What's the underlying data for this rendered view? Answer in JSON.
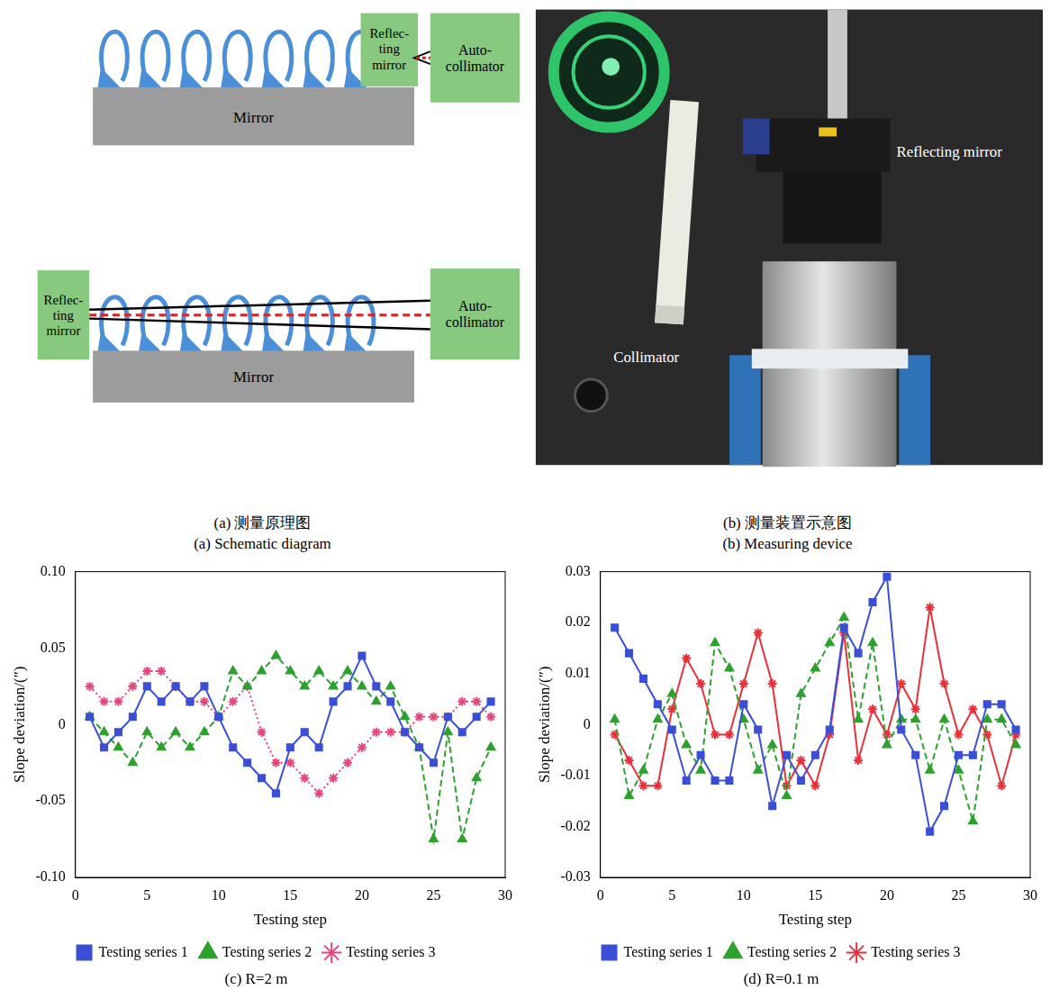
{
  "diagram": {
    "a": {
      "captions": [
        "(a) 测量原理图",
        "(a) Schematic diagram"
      ],
      "upper": {
        "reflecting_mirror": [
          "Reflec-",
          "ting",
          "mirror"
        ],
        "autocollimator": [
          "Auto-",
          "collimator"
        ],
        "mirror": "Mirror"
      },
      "lower": {
        "reflecting_mirror": [
          "Reflec-",
          "ting",
          "mirror"
        ],
        "autocollimator": [
          "Auto-",
          "collimator"
        ],
        "mirror": "Mirror"
      }
    },
    "b": {
      "captions": [
        "(b) 测量装置示意图",
        "(b) Measuring device"
      ],
      "labels": {
        "reflecting_mirror": "Reflecting mirror",
        "collimator": "Collimator"
      }
    }
  },
  "chart_data": [
    {
      "type": "line",
      "title": "(c) R=2 m",
      "x_label": "Testing step",
      "y_label": "Slope deviation/(″)",
      "x": [
        1,
        2,
        3,
        4,
        5,
        6,
        7,
        8,
        9,
        10,
        11,
        12,
        13,
        14,
        15,
        16,
        17,
        18,
        19,
        20,
        21,
        22,
        23,
        24,
        25,
        26,
        27,
        28,
        29
      ],
      "xlim": [
        0,
        30
      ],
      "xticks": [
        0,
        5,
        10,
        15,
        20,
        25,
        30
      ],
      "ylim": [
        -0.1,
        0.1
      ],
      "yticks": [
        {
          "value": -0.1,
          "label": "-0.10"
        },
        -0.05,
        0,
        0.05,
        {
          "value": 0.1,
          "label": "0.10"
        }
      ],
      "grid": false,
      "legend": "bottom",
      "series": [
        {
          "name": "Testing series 1",
          "color": "#3a4fd6",
          "marker": "square",
          "line_style": "solid",
          "values": [
            0.005,
            -0.015,
            -0.005,
            0.005,
            0.025,
            0.015,
            0.025,
            0.015,
            0.025,
            0.005,
            -0.015,
            -0.025,
            -0.035,
            -0.045,
            -0.015,
            -0.005,
            -0.015,
            0.015,
            0.025,
            0.045,
            0.025,
            0.015,
            -0.005,
            -0.015,
            -0.025,
            0.005,
            -0.005,
            0.005,
            0.015
          ]
        },
        {
          "name": "Testing series 2",
          "color": "#2ea02e",
          "marker": "triangle",
          "line_style": "dashed",
          "values": [
            0.005,
            -0.005,
            -0.015,
            -0.025,
            -0.005,
            -0.015,
            -0.005,
            -0.015,
            -0.005,
            0.005,
            0.035,
            0.025,
            0.035,
            0.045,
            0.035,
            0.025,
            0.035,
            0.025,
            0.035,
            0.025,
            0.015,
            0.025,
            0.005,
            -0.015,
            -0.075,
            -0.005,
            -0.075,
            -0.035,
            -0.015
          ]
        },
        {
          "name": "Testing series 3",
          "color": "#e8467a",
          "marker": "star",
          "line_style": "dotted",
          "values": [
            0.025,
            0.015,
            0.015,
            0.025,
            0.035,
            0.035,
            0.025,
            0.015,
            0.015,
            0.005,
            0.015,
            0.025,
            -0.005,
            -0.025,
            -0.025,
            -0.035,
            -0.045,
            -0.035,
            -0.025,
            -0.015,
            -0.005,
            -0.005,
            -0.005,
            0.005,
            0.005,
            0.005,
            0.015,
            0.015,
            0.005
          ]
        }
      ]
    },
    {
      "type": "line",
      "title": "(d) R=0.1 m",
      "x_label": "Testing step",
      "y_label": "Slope deviation/(″)",
      "x": [
        1,
        2,
        3,
        4,
        5,
        6,
        7,
        8,
        9,
        10,
        11,
        12,
        13,
        14,
        15,
        16,
        17,
        18,
        19,
        20,
        21,
        22,
        23,
        24,
        25,
        26,
        27,
        28,
        29
      ],
      "xlim": [
        0,
        30
      ],
      "xticks": [
        0,
        5,
        10,
        15,
        20,
        25,
        30
      ],
      "ylim": [
        -0.03,
        0.03
      ],
      "yticks": [
        -0.03,
        -0.02,
        -0.01,
        0,
        0.01,
        0.02,
        0.03
      ],
      "grid": false,
      "legend": "bottom",
      "series": [
        {
          "name": "Testing series 1",
          "color": "#3a4fd6",
          "marker": "square",
          "line_style": "solid",
          "values": [
            0.019,
            0.014,
            0.009,
            0.004,
            -0.001,
            -0.011,
            -0.006,
            -0.011,
            -0.011,
            0.004,
            -0.001,
            -0.016,
            -0.006,
            -0.011,
            -0.006,
            -0.001,
            0.019,
            0.014,
            0.024,
            0.029,
            -0.001,
            -0.006,
            -0.021,
            -0.016,
            -0.006,
            -0.006,
            0.004,
            0.004,
            -0.001
          ]
        },
        {
          "name": "Testing series 2",
          "color": "#2ea02e",
          "marker": "triangle",
          "line_style": "dashed",
          "values": [
            0.001,
            -0.014,
            -0.009,
            0.001,
            0.006,
            -0.004,
            -0.009,
            0.016,
            0.011,
            0.001,
            -0.009,
            -0.004,
            -0.014,
            0.006,
            0.011,
            0.016,
            0.021,
            0.001,
            0.016,
            -0.004,
            0.001,
            0.001,
            -0.009,
            0.001,
            -0.009,
            -0.019,
            0.001,
            0.001,
            -0.004
          ]
        },
        {
          "name": "Testing series 3",
          "color": "#e8303a",
          "marker": "star",
          "line_style": "solid",
          "values": [
            -0.002,
            -0.007,
            -0.012,
            -0.012,
            0.003,
            0.013,
            0.008,
            -0.002,
            -0.002,
            0.008,
            0.018,
            0.008,
            -0.012,
            -0.007,
            -0.012,
            -0.002,
            0.018,
            -0.007,
            0.003,
            -0.002,
            0.008,
            0.003,
            0.023,
            0.008,
            -0.002,
            0.003,
            -0.002,
            -0.012,
            -0.002
          ]
        }
      ]
    }
  ]
}
